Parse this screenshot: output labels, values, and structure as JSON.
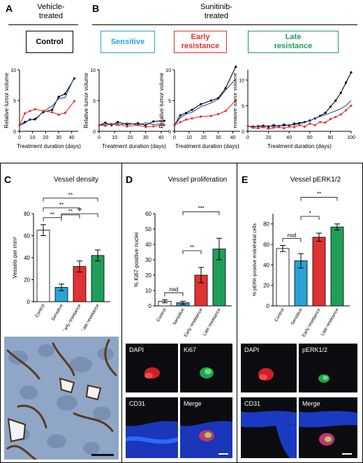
{
  "panels": {
    "A": {
      "letter": "A",
      "title": "Vehicle-\ntreated"
    },
    "B": {
      "letter": "B",
      "title": "Sunitinib-\ntreated"
    },
    "C": {
      "letter": "C"
    },
    "D": {
      "letter": "D"
    },
    "E": {
      "letter": "E"
    }
  },
  "groups": [
    {
      "label": "Control",
      "color": "#000000"
    },
    {
      "label": "Sensitive",
      "color": "#29a3d6"
    },
    {
      "label": "Early\nresistance",
      "color": "#e03232"
    },
    {
      "label": "Late\nresistance",
      "color": "#1f9e5a"
    }
  ],
  "colors": {
    "black": "#000000",
    "blue": "#2a4fa0",
    "red": "#e03232",
    "sensitive": "#29a3d6",
    "early": "#e03232",
    "late": "#1f9e5a"
  },
  "micro_labels": {
    "D": [
      "DAPI",
      "Ki67",
      "CD31",
      "Merge"
    ],
    "E": [
      "DAPI",
      "pERK1/2",
      "CD31",
      "Merge"
    ]
  },
  "chart_data": [
    {
      "type": "line",
      "panel": "A",
      "xlabel": "Treatment duration (days)",
      "ylabel": "Relative tumor volume",
      "xlim": [
        0,
        45
      ],
      "ylim": [
        0,
        10
      ],
      "xticks": [
        0,
        10,
        20,
        30,
        40
      ],
      "yticks": [
        0,
        5,
        10
      ],
      "series": [
        {
          "color": "#000000",
          "marker": true,
          "x": [
            0,
            4,
            8,
            12,
            18,
            25,
            30,
            35,
            42
          ],
          "y": [
            1.0,
            1.5,
            1.9,
            2.0,
            3.1,
            3.5,
            5.6,
            6.1,
            8.6
          ]
        },
        {
          "color": "#2a4fa0",
          "marker": false,
          "x": [
            0,
            4,
            8,
            12,
            18,
            25,
            30,
            35,
            42
          ],
          "y": [
            1.0,
            1.3,
            2.0,
            1.8,
            3.2,
            4.1,
            5.3,
            5.5,
            8.8
          ]
        },
        {
          "color": "#e03232",
          "marker": true,
          "x": [
            0,
            4,
            8,
            12,
            18,
            25,
            30,
            35,
            42
          ],
          "y": [
            1.0,
            2.9,
            3.3,
            3.6,
            3.3,
            3.1,
            2.7,
            3.0,
            4.9
          ]
        }
      ]
    },
    {
      "type": "line",
      "panel": "B-sensitive",
      "xlabel": "Treatment duration (days)",
      "ylabel": "Relative tumor volume",
      "xlim": [
        0,
        45
      ],
      "ylim": [
        0,
        10
      ],
      "xticks": [
        0,
        10,
        20,
        30,
        40
      ],
      "yticks": [
        0,
        5,
        10
      ],
      "series": [
        {
          "color": "#000000",
          "marker": true,
          "x": [
            0,
            4,
            8,
            12,
            18,
            25,
            30,
            35,
            42
          ],
          "y": [
            1.0,
            1.4,
            1.0,
            1.5,
            1.1,
            1.3,
            1.0,
            1.6,
            1.7
          ]
        },
        {
          "color": "#2a4fa0",
          "marker": false,
          "x": [
            0,
            4,
            8,
            12,
            18,
            25,
            30,
            35,
            42
          ],
          "y": [
            1.0,
            1.1,
            1.3,
            0.9,
            1.4,
            1.0,
            1.4,
            1.1,
            1.2
          ]
        },
        {
          "color": "#e03232",
          "marker": true,
          "x": [
            0,
            4,
            8,
            12,
            18,
            25,
            30,
            35,
            42
          ],
          "y": [
            1.0,
            0.9,
            1.2,
            1.2,
            0.8,
            1.0,
            0.7,
            0.8,
            1.0
          ]
        }
      ]
    },
    {
      "type": "line",
      "panel": "B-early",
      "xlabel": "Treatment duration (days)",
      "ylabel": "Relative tumor volume",
      "xlim": [
        0,
        45
      ],
      "ylim": [
        0,
        10
      ],
      "xticks": [
        0,
        10,
        20,
        30,
        40
      ],
      "yticks": [
        0,
        5,
        10
      ],
      "series": [
        {
          "color": "#000000",
          "marker": true,
          "x": [
            0,
            4,
            8,
            12,
            18,
            25,
            30,
            35,
            42
          ],
          "y": [
            1.0,
            2.6,
            3.0,
            3.5,
            4.4,
            5.0,
            5.4,
            7.0,
            10.5
          ]
        },
        {
          "color": "#2a4fa0",
          "marker": false,
          "x": [
            0,
            4,
            8,
            12,
            18,
            25,
            30,
            35,
            42
          ],
          "y": [
            1.0,
            2.2,
            2.8,
            3.1,
            4.0,
            4.6,
            5.2,
            6.7,
            8.5
          ]
        },
        {
          "color": "#e03232",
          "marker": true,
          "x": [
            0,
            4,
            8,
            12,
            18,
            25,
            30,
            35,
            42
          ],
          "y": [
            1.0,
            1.5,
            1.9,
            2.1,
            2.4,
            2.5,
            2.8,
            3.3,
            5.0
          ]
        }
      ]
    },
    {
      "type": "line",
      "panel": "B-late",
      "xlabel": "Treatment duration (days)",
      "ylabel": "Relative tumor volume",
      "xlim": [
        0,
        100
      ],
      "ylim": [
        0,
        12
      ],
      "xticks": [
        0,
        20,
        40,
        60,
        80,
        100
      ],
      "yticks": [
        0,
        5,
        10
      ],
      "series": [
        {
          "color": "#000000",
          "marker": true,
          "x": [
            0,
            5,
            10,
            15,
            20,
            25,
            30,
            35,
            40,
            45,
            50,
            55,
            60,
            65,
            70,
            75,
            80,
            85,
            90,
            95,
            100
          ],
          "y": [
            1.0,
            0.9,
            1.0,
            1.1,
            0.9,
            1.2,
            1.0,
            1.3,
            1.1,
            1.5,
            1.6,
            1.8,
            2.1,
            2.5,
            3.0,
            3.6,
            4.8,
            6.0,
            7.5,
            9.5,
            11.5
          ]
        },
        {
          "color": "#2a4fa0",
          "marker": false,
          "x": [
            0,
            5,
            10,
            15,
            20,
            25,
            30,
            35,
            40,
            45,
            50,
            55,
            60,
            65,
            70,
            75,
            80,
            85,
            90,
            95,
            100
          ],
          "y": [
            1.0,
            0.8,
            1.0,
            0.9,
            1.1,
            0.9,
            1.2,
            1.0,
            1.3,
            1.2,
            1.5,
            1.7,
            2.1,
            2.5,
            2.9,
            3.2,
            3.6,
            4.0,
            4.4,
            5.0,
            6.0
          ]
        },
        {
          "color": "#e03232",
          "marker": true,
          "x": [
            0,
            5,
            10,
            15,
            20,
            25,
            30,
            35,
            40,
            45,
            50,
            55,
            60,
            65,
            70,
            75,
            80,
            85,
            90,
            95,
            100
          ],
          "y": [
            1.0,
            0.7,
            0.6,
            0.8,
            0.5,
            0.7,
            0.8,
            0.6,
            0.9,
            0.8,
            1.2,
            0.9,
            1.5,
            1.2,
            1.8,
            1.7,
            2.4,
            2.8,
            3.3,
            4.1,
            5.0
          ]
        }
      ]
    },
    {
      "type": "bar",
      "panel": "C",
      "title": "Vessel density",
      "ylabel": "Vessels per mm²",
      "categories": [
        "Control",
        "Sensitive",
        "Early resistance",
        "Late resistance"
      ],
      "values": [
        65,
        13,
        32,
        42
      ],
      "errors": [
        5,
        3,
        5,
        5
      ],
      "colors": [
        "#ffffff",
        "#29a3d6",
        "#e03232",
        "#1f9e5a"
      ],
      "ylim": [
        0,
        80
      ],
      "yticks": [
        0,
        20,
        40,
        60,
        80
      ],
      "brackets": [
        {
          "from": 0,
          "to": 1,
          "label": "**"
        },
        {
          "from": 0,
          "to": 2,
          "label": "**"
        },
        {
          "from": 0,
          "to": 3,
          "label": "**"
        },
        {
          "from": 1,
          "to": 3,
          "label": "**"
        },
        {
          "from": 1,
          "to": 2,
          "label": "**"
        }
      ]
    },
    {
      "type": "bar",
      "panel": "D",
      "title": "Vessel proliferation",
      "ylabel": "% Ki67-positive nuclei",
      "categories": [
        "Control",
        "Sensitive",
        "Early resistance",
        "Late resistance"
      ],
      "values": [
        3,
        2,
        20,
        37
      ],
      "errors": [
        1,
        1,
        5,
        7
      ],
      "colors": [
        "#ffffff",
        "#29a3d6",
        "#e03232",
        "#1f9e5a"
      ],
      "ylim": [
        0,
        60
      ],
      "yticks": [
        0,
        10,
        20,
        30,
        40,
        50,
        60
      ],
      "brackets": [
        {
          "from": 0,
          "to": 1,
          "label": "nsd"
        },
        {
          "from": 1,
          "to": 2,
          "label": "**"
        },
        {
          "from": 1,
          "to": 3,
          "label": "***"
        }
      ]
    },
    {
      "type": "bar",
      "panel": "E",
      "title": "Vessel pERK1/2",
      "ylabel": "% pERK-positive endothelial cells",
      "categories": [
        "Control",
        "Sensitive",
        "Early resistance",
        "Late resistance"
      ],
      "values": [
        56,
        44,
        67,
        77
      ],
      "errors": [
        3,
        7,
        4,
        3
      ],
      "colors": [
        "#ffffff",
        "#29a3d6",
        "#e03232",
        "#1f9e5a"
      ],
      "ylim": [
        0,
        90
      ],
      "yticks": [
        0,
        20,
        40,
        60,
        80
      ],
      "brackets": [
        {
          "from": 0,
          "to": 1,
          "label": "nsd"
        },
        {
          "from": 1,
          "to": 2,
          "label": "*"
        },
        {
          "from": 1,
          "to": 3,
          "label": "**"
        }
      ]
    }
  ]
}
